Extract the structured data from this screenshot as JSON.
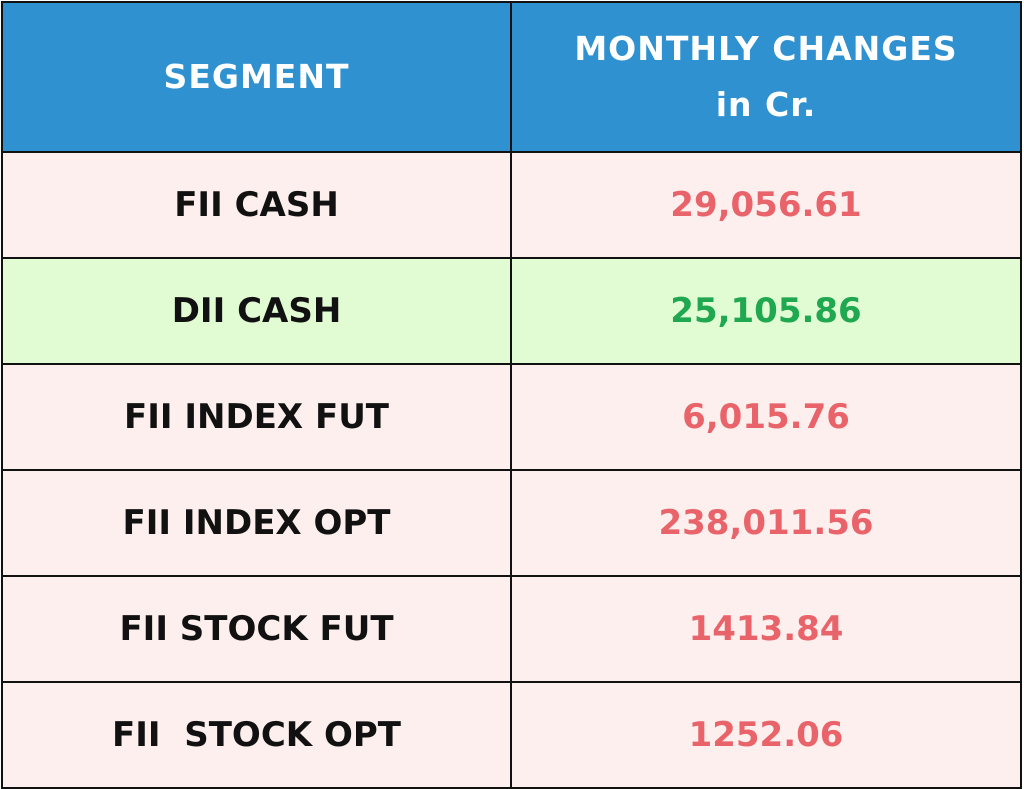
{
  "header": {
    "segment": "SEGMENT",
    "monthly_changes_line1": "MONTHLY CHANGES",
    "monthly_changes_line2": "in Cr."
  },
  "rows": [
    {
      "segment": "FII CASH",
      "value": "29,056.61",
      "status": "negative"
    },
    {
      "segment": "DII CASH",
      "value": "25,105.86",
      "status": "positive"
    },
    {
      "segment": "FII INDEX FUT",
      "value": "6,015.76",
      "status": "negative"
    },
    {
      "segment": "FII INDEX OPT",
      "value": "238,011.56",
      "status": "negative"
    },
    {
      "segment": "FII STOCK FUT",
      "value": "1413.84",
      "status": "negative"
    },
    {
      "segment": "FII  STOCK OPT",
      "value": "1252.06",
      "status": "negative"
    }
  ],
  "colors": {
    "header_bg": "#2f91cf",
    "negative_row_bg": "#fdefee",
    "positive_row_bg": "#e1fbd3",
    "negative_text": "#e9646a",
    "positive_text": "#1fa84f"
  }
}
